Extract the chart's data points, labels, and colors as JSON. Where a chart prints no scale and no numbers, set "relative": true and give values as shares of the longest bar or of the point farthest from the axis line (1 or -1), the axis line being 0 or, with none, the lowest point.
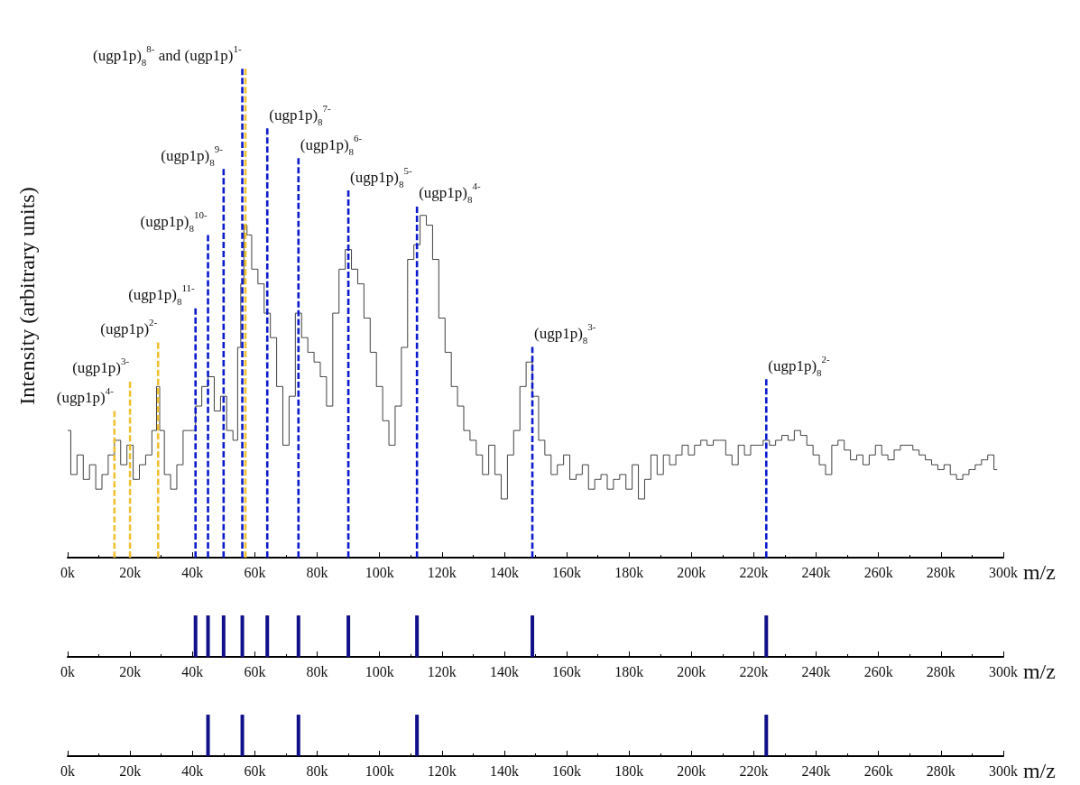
{
  "chart_data": [
    {
      "type": "step",
      "relative": true,
      "ylabel": "Intensity (arbitrary units)",
      "xlabel": "m/z",
      "tick_labels": "x",
      "xlim": [
        0,
        300000
      ],
      "xticks": [
        {
          "value": 0,
          "label": "0k"
        },
        {
          "value": 20000,
          "label": "20k"
        },
        {
          "value": 40000,
          "label": "40k"
        },
        {
          "value": 60000,
          "label": "60k"
        },
        {
          "value": 80000,
          "label": "80k"
        },
        {
          "value": 100000,
          "label": "100k"
        },
        {
          "value": 120000,
          "label": "120k"
        },
        {
          "value": 140000,
          "label": "140k"
        },
        {
          "value": 160000,
          "label": "160k"
        },
        {
          "value": 180000,
          "label": "180k"
        },
        {
          "value": 200000,
          "label": "200k"
        },
        {
          "value": 220000,
          "label": "220k"
        },
        {
          "value": 240000,
          "label": "240k"
        },
        {
          "value": 260000,
          "label": "260k"
        },
        {
          "value": 280000,
          "label": "280k"
        },
        {
          "value": 300000,
          "label": "300k"
        }
      ],
      "series": [
        {
          "type": "step",
          "color": "#404040",
          "x": [
            0,
            2000,
            4000,
            6000,
            8000,
            10000,
            12000,
            14000,
            16000,
            18000,
            20000,
            22000,
            24000,
            26000,
            28000,
            29000,
            30000,
            32000,
            34000,
            36000,
            38000,
            40000,
            42000,
            44000,
            46000,
            48000,
            50000,
            52000,
            54000,
            55000,
            56000,
            57000,
            58000,
            60000,
            62000,
            64000,
            66000,
            68000,
            70000,
            72000,
            74000,
            76000,
            78000,
            80000,
            82000,
            84000,
            86000,
            88000,
            90000,
            92000,
            94000,
            96000,
            98000,
            100000,
            102000,
            104000,
            106000,
            108000,
            110000,
            112000,
            114000,
            116000,
            118000,
            120000,
            122000,
            124000,
            126000,
            128000,
            130000,
            132000,
            134000,
            136000,
            138000,
            140000,
            142000,
            144000,
            146000,
            148000,
            150000,
            152000,
            154000,
            156000,
            158000,
            160000,
            162000,
            164000,
            166000,
            168000,
            170000,
            172000,
            174000,
            176000,
            178000,
            180000,
            182000,
            184000,
            186000,
            188000,
            190000,
            192000,
            194000,
            196000,
            198000,
            200000,
            202000,
            204000,
            206000,
            208000,
            210000,
            212000,
            214000,
            216000,
            218000,
            220000,
            222000,
            224000,
            226000,
            228000,
            230000,
            232000,
            234000,
            236000,
            238000,
            240000,
            242000,
            244000,
            246000,
            248000,
            250000,
            252000,
            254000,
            256000,
            258000,
            260000,
            262000,
            264000,
            266000,
            268000,
            270000,
            272000,
            274000,
            276000,
            278000,
            280000,
            282000,
            284000,
            286000,
            288000,
            290000,
            292000,
            294000,
            296000,
            298000
          ],
          "values": [
            0.26,
            0.17,
            0.21,
            0.16,
            0.19,
            0.14,
            0.17,
            0.21,
            0.24,
            0.19,
            0.23,
            0.16,
            0.19,
            0.21,
            0.26,
            0.35,
            0.26,
            0.17,
            0.14,
            0.19,
            0.26,
            0.26,
            0.31,
            0.35,
            0.37,
            0.3,
            0.33,
            0.26,
            0.24,
            0.43,
            0.56,
            0.68,
            0.66,
            0.59,
            0.56,
            0.5,
            0.45,
            0.35,
            0.23,
            0.33,
            0.5,
            0.45,
            0.42,
            0.4,
            0.37,
            0.31,
            0.5,
            0.59,
            0.63,
            0.59,
            0.56,
            0.49,
            0.42,
            0.35,
            0.28,
            0.23,
            0.31,
            0.43,
            0.61,
            0.64,
            0.7,
            0.68,
            0.61,
            0.49,
            0.42,
            0.35,
            0.31,
            0.26,
            0.24,
            0.21,
            0.17,
            0.23,
            0.17,
            0.12,
            0.21,
            0.26,
            0.35,
            0.4,
            0.33,
            0.24,
            0.21,
            0.17,
            0.19,
            0.21,
            0.16,
            0.17,
            0.19,
            0.14,
            0.16,
            0.17,
            0.14,
            0.16,
            0.17,
            0.14,
            0.19,
            0.12,
            0.16,
            0.21,
            0.17,
            0.21,
            0.19,
            0.21,
            0.23,
            0.21,
            0.23,
            0.24,
            0.23,
            0.24,
            0.24,
            0.21,
            0.19,
            0.23,
            0.21,
            0.23,
            0.23,
            0.24,
            0.23,
            0.24,
            0.25,
            0.24,
            0.26,
            0.25,
            0.23,
            0.21,
            0.19,
            0.17,
            0.23,
            0.24,
            0.22,
            0.2,
            0.21,
            0.19,
            0.21,
            0.23,
            0.21,
            0.2,
            0.22,
            0.23,
            0.23,
            0.22,
            0.21,
            0.2,
            0.19,
            0.18,
            0.19,
            0.17,
            0.16,
            0.17,
            0.18,
            0.19,
            0.2,
            0.21,
            0.18
          ]
        },
        {
          "type": "line",
          "color": "#f0c030",
          "line_style": "dashed",
          "x": [
            15000,
            15000
          ],
          "values": [
            0,
            0.3
          ]
        },
        {
          "type": "line",
          "color": "#f0c030",
          "line_style": "dashed",
          "x": [
            20000,
            20000
          ],
          "values": [
            0,
            0.36
          ]
        },
        {
          "type": "line",
          "color": "#f0c030",
          "line_style": "dashed",
          "x": [
            29000,
            29000
          ],
          "values": [
            0,
            0.44
          ]
        },
        {
          "type": "line",
          "color": "#f0c030",
          "line_style": "dashed",
          "x": [
            57000,
            57000
          ],
          "values": [
            0,
            1
          ]
        },
        {
          "type": "line",
          "color": "#0a1acc",
          "line_style": "dashed",
          "x": [
            41000,
            41000
          ],
          "values": [
            0,
            0.51
          ]
        },
        {
          "type": "line",
          "color": "#0a1acc",
          "line_style": "dashed",
          "x": [
            45000,
            45000
          ],
          "values": [
            0,
            0.66
          ]
        },
        {
          "type": "line",
          "color": "#0a1acc",
          "line_style": "dashed",
          "x": [
            50000,
            50000
          ],
          "values": [
            0,
            0.795
          ]
        },
        {
          "type": "line",
          "color": "#0a1acc",
          "line_style": "dashed",
          "x": [
            56000,
            56000
          ],
          "values": [
            0,
            1
          ]
        },
        {
          "type": "line",
          "color": "#0a1acc",
          "line_style": "dashed",
          "x": [
            64000,
            64000
          ],
          "values": [
            0,
            0.878
          ]
        },
        {
          "type": "line",
          "color": "#0a1acc",
          "line_style": "dashed",
          "x": [
            74000,
            74000
          ],
          "values": [
            0,
            0.817
          ]
        },
        {
          "type": "line",
          "color": "#0a1acc",
          "line_style": "dashed",
          "x": [
            90000,
            90000
          ],
          "values": [
            0,
            0.751
          ]
        },
        {
          "type": "line",
          "color": "#0a1acc",
          "line_style": "dashed",
          "x": [
            112000,
            112000
          ],
          "values": [
            0,
            0.718
          ]
        },
        {
          "type": "line",
          "color": "#0a1acc",
          "line_style": "dashed",
          "x": [
            149000,
            149000
          ],
          "values": [
            0,
            0.431
          ]
        },
        {
          "type": "line",
          "color": "#0a1acc",
          "line_style": "dashed",
          "x": [
            224000,
            224000
          ],
          "values": [
            0,
            0.365
          ]
        }
      ],
      "annotations": [
        {
          "text": "(ugp1p)$^{4-}$",
          "x": 15000,
          "y": 0.3
        },
        {
          "text": "(ugp1p)$^{3-}$",
          "x": 20000,
          "y": 0.36
        },
        {
          "text": "(ugp1p)$^{2-}$",
          "x": 29000,
          "y": 0.44
        },
        {
          "text": "(ugp1p)$_{8}$$^{11-}$",
          "x": 41000,
          "y": 0.51
        },
        {
          "text": "(ugp1p)$_{8}$$^{10-}$",
          "x": 45000,
          "y": 0.66
        },
        {
          "text": "(ugp1p)$_{8}$$^{9-}$",
          "x": 50000,
          "y": 0.795
        },
        {
          "text": "(ugp1p)$_{8}$$^{8-}$ and (ugp1p)$^{1-}$",
          "x": 56000,
          "y": 1
        },
        {
          "text": "(ugp1p)$_{8}$$^{7-}$",
          "x": 64000,
          "y": 0.878
        },
        {
          "text": "(ugp1p)$_{8}$$^{6-}$",
          "x": 74000,
          "y": 0.817
        },
        {
          "text": "(ugp1p)$_{8}$$^{5-}$",
          "x": 90000,
          "y": 0.751
        },
        {
          "text": "(ugp1p)$_{8}$$^{4-}$",
          "x": 112000,
          "y": 0.718
        },
        {
          "text": "(ugp1p)$_{8}$$^{3-}$",
          "x": 149000,
          "y": 0.431
        },
        {
          "text": "(ugp1p)$_{8}$$^{2-}$",
          "x": 224000,
          "y": 0.365
        }
      ]
    },
    {
      "type": "bar",
      "relative": true,
      "xlabel": "m/z",
      "tick_labels": "x",
      "xlim": [
        0,
        300000
      ],
      "color": "#10108a",
      "xticks": [
        {
          "value": 0,
          "label": "0k"
        },
        {
          "value": 20000,
          "label": "20k"
        },
        {
          "value": 40000,
          "label": "40k"
        },
        {
          "value": 60000,
          "label": "60k"
        },
        {
          "value": 80000,
          "label": "80k"
        },
        {
          "value": 100000,
          "label": "100k"
        },
        {
          "value": 120000,
          "label": "120k"
        },
        {
          "value": 140000,
          "label": "140k"
        },
        {
          "value": 160000,
          "label": "160k"
        },
        {
          "value": 180000,
          "label": "180k"
        },
        {
          "value": 200000,
          "label": "200k"
        },
        {
          "value": 220000,
          "label": "220k"
        },
        {
          "value": 240000,
          "label": "240k"
        },
        {
          "value": 260000,
          "label": "260k"
        },
        {
          "value": 280000,
          "label": "280k"
        },
        {
          "value": 300000,
          "label": "300k"
        }
      ],
      "x": [
        41000,
        45000,
        50000,
        56000,
        64000,
        74000,
        90000,
        112000,
        149000,
        224000
      ],
      "values": [
        1,
        1,
        1,
        1,
        1,
        1,
        1,
        1,
        1,
        1
      ]
    },
    {
      "type": "bar",
      "relative": true,
      "xlabel": "m/z",
      "xlim": [
        0,
        300000
      ],
      "color": "#10108a",
      "xticks": [
        {
          "value": 0,
          "label": "0k"
        },
        {
          "value": 20000,
          "label": "20k"
        },
        {
          "value": 40000,
          "label": "40k"
        },
        {
          "value": 60000,
          "label": "60k"
        },
        {
          "value": 80000,
          "label": "80k"
        },
        {
          "value": 100000,
          "label": "100k"
        },
        {
          "value": 120000,
          "label": "120k"
        },
        {
          "value": 140000,
          "label": "140k"
        },
        {
          "value": 160000,
          "label": "160k"
        },
        {
          "value": 180000,
          "label": "180k"
        },
        {
          "value": 200000,
          "label": "200k"
        },
        {
          "value": 220000,
          "label": "220k"
        },
        {
          "value": 240000,
          "label": "240k"
        },
        {
          "value": 260000,
          "label": "260k"
        },
        {
          "value": 280000,
          "label": "280k"
        },
        {
          "value": 300000,
          "label": "300k"
        }
      ],
      "x": [
        45000,
        56000,
        74000,
        112000,
        224000
      ],
      "values": [
        1,
        1,
        1,
        1,
        1
      ],
      "tick_labels": "x"
    }
  ]
}
